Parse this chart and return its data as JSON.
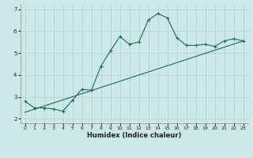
{
  "xlabel": "Humidex (Indice chaleur)",
  "bg_color": "#cce8e8",
  "line_color": "#1a6b5a",
  "grid_color": "#b0d0d0",
  "x_data": [
    0,
    1,
    2,
    3,
    4,
    5,
    6,
    7,
    8,
    9,
    10,
    11,
    12,
    13,
    14,
    15,
    16,
    17,
    18,
    19,
    20,
    21,
    22,
    23
  ],
  "y_curve": [
    2.8,
    2.5,
    2.5,
    2.45,
    2.35,
    2.85,
    3.35,
    3.3,
    4.4,
    5.1,
    5.75,
    5.4,
    5.5,
    6.5,
    6.8,
    6.6,
    5.7,
    5.35,
    5.35,
    5.4,
    5.3,
    5.55,
    5.65,
    5.55
  ],
  "y_line_start": 2.3,
  "y_line_end": 5.55,
  "xlim": [
    -0.5,
    23.5
  ],
  "ylim": [
    1.8,
    7.2
  ],
  "yticks": [
    2,
    3,
    4,
    5,
    6,
    7
  ],
  "xticks": [
    0,
    1,
    2,
    3,
    4,
    5,
    6,
    7,
    8,
    9,
    10,
    11,
    12,
    13,
    14,
    15,
    16,
    17,
    18,
    19,
    20,
    21,
    22,
    23
  ],
  "tick_fontsize": 4.5,
  "xlabel_fontsize": 6.0
}
